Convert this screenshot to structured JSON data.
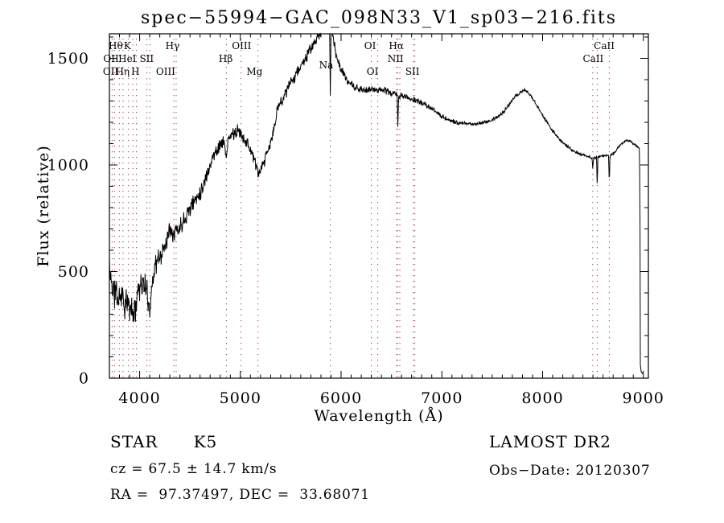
{
  "title": "spec−55994−GAC_098N33_V1_sp03−216.fits",
  "footer": {
    "class_label": "STAR      K5",
    "survey": "LAMOST DR2",
    "cz": "cz = 67.5 ± 14.7 km/s",
    "obs_date": "Obs−Date: 20120307",
    "coords": "RA =  97.37497, DEC =  33.68071"
  },
  "chart_data": {
    "type": "line",
    "title": "spec−55994−GAC_098N33_V1_sp03−216.fits",
    "xlabel": "Wavelength (Å)",
    "ylabel": "Flux (relative)",
    "xlim": [
      3700,
      9050
    ],
    "ylim": [
      0,
      1615
    ],
    "x_major_ticks": [
      4000,
      5000,
      6000,
      7000,
      8000,
      9000
    ],
    "x_minor_step": 100,
    "y_major_ticks": [
      0,
      500,
      1000,
      1500
    ],
    "y_minor_step": 100,
    "grid": false,
    "line_color": "#000000",
    "marker_line_color": "#9b3a35",
    "marker_lines": [
      3727,
      3750,
      3798,
      3835,
      3889,
      3933,
      3968,
      4072,
      4102,
      4340,
      4363,
      4861,
      5007,
      5175,
      5893,
      6300,
      6364,
      6548,
      6563,
      6583,
      6717,
      6731,
      8498,
      8542,
      8662
    ],
    "marker_labels": [
      {
        "label": "Hθ",
        "row": 1,
        "pos": 3763
      },
      {
        "label": "K",
        "row": 1,
        "pos": 3878
      },
      {
        "label": "Hγ",
        "row": 1,
        "pos": 4327
      },
      {
        "label": "OIII",
        "row": 1,
        "pos": 5012
      },
      {
        "label": "OI",
        "row": 1,
        "pos": 6288
      },
      {
        "label": "Hα",
        "row": 1,
        "pos": 6548
      },
      {
        "label": "CaII",
        "row": 1,
        "pos": 8612
      },
      {
        "label": "OII",
        "row": 2,
        "pos": 3717
      },
      {
        "label": "HeI",
        "row": 2,
        "pos": 3878
      },
      {
        "label": "SII",
        "row": 2,
        "pos": 4070
      },
      {
        "label": "Hβ",
        "row": 2,
        "pos": 4855
      },
      {
        "label": "NII",
        "row": 2,
        "pos": 6540
      },
      {
        "label": "CaII",
        "row": 2,
        "pos": 8502
      },
      {
        "label": "Na",
        "row": 2.5,
        "pos": 5852
      },
      {
        "label": "OII",
        "row": 3,
        "pos": 3713
      },
      {
        "label": "Hη",
        "row": 3,
        "pos": 3830
      },
      {
        "label": "H",
        "row": 3,
        "pos": 3958
      },
      {
        "label": "OIII",
        "row": 3,
        "pos": 4258
      },
      {
        "label": "Mg",
        "row": 3,
        "pos": 5140
      },
      {
        "label": "OI",
        "row": 3,
        "pos": 6312
      },
      {
        "label": "SII",
        "row": 3,
        "pos": 6708
      }
    ],
    "series": [
      {
        "name": "spectrum",
        "unit": "relative flux vs Å"
      }
    ],
    "spectrum_anchors": [
      [
        3700,
        560
      ],
      [
        3706,
        430
      ],
      [
        3712,
        520
      ],
      [
        3718,
        420
      ],
      [
        3724,
        470
      ],
      [
        3732,
        400
      ],
      [
        3740,
        430
      ],
      [
        3750,
        380
      ],
      [
        3762,
        430
      ],
      [
        3775,
        390
      ],
      [
        3790,
        360
      ],
      [
        3800,
        395
      ],
      [
        3812,
        370
      ],
      [
        3825,
        415
      ],
      [
        3838,
        360
      ],
      [
        3850,
        330
      ],
      [
        3862,
        365
      ],
      [
        3875,
        330
      ],
      [
        3888,
        360
      ],
      [
        3900,
        315
      ],
      [
        3912,
        345
      ],
      [
        3925,
        310
      ],
      [
        3933,
        285
      ],
      [
        3945,
        330
      ],
      [
        3955,
        300
      ],
      [
        3965,
        365
      ],
      [
        3975,
        400
      ],
      [
        3988,
        430
      ],
      [
        4000,
        425
      ],
      [
        4015,
        450
      ],
      [
        4030,
        435
      ],
      [
        4045,
        445
      ],
      [
        4060,
        420
      ],
      [
        4075,
        395
      ],
      [
        4090,
        345
      ],
      [
        4102,
        330
      ],
      [
        4115,
        390
      ],
      [
        4130,
        470
      ],
      [
        4145,
        515
      ],
      [
        4165,
        540
      ],
      [
        4185,
        555
      ],
      [
        4210,
        575
      ],
      [
        4235,
        600
      ],
      [
        4260,
        640
      ],
      [
        4285,
        680
      ],
      [
        4310,
        715
      ],
      [
        4335,
        680
      ],
      [
        4360,
        700
      ],
      [
        4385,
        690
      ],
      [
        4410,
        720
      ],
      [
        4440,
        745
      ],
      [
        4470,
        775
      ],
      [
        4500,
        800
      ],
      [
        4530,
        820
      ],
      [
        4560,
        845
      ],
      [
        4590,
        865
      ],
      [
        4620,
        890
      ],
      [
        4650,
        930
      ],
      [
        4680,
        975
      ],
      [
        4710,
        1015
      ],
      [
        4740,
        1050
      ],
      [
        4770,
        1075
      ],
      [
        4800,
        1095
      ],
      [
        4830,
        1105
      ],
      [
        4852,
        1080
      ],
      [
        4861,
        1020
      ],
      [
        4872,
        1090
      ],
      [
        4890,
        1125
      ],
      [
        4910,
        1140
      ],
      [
        4930,
        1150
      ],
      [
        4950,
        1145
      ],
      [
        4970,
        1155
      ],
      [
        4990,
        1160
      ],
      [
        5007,
        1140
      ],
      [
        5025,
        1135
      ],
      [
        5045,
        1120
      ],
      [
        5065,
        1105
      ],
      [
        5085,
        1085
      ],
      [
        5105,
        1070
      ],
      [
        5125,
        1045
      ],
      [
        5145,
        1010
      ],
      [
        5165,
        980
      ],
      [
        5185,
        960
      ],
      [
        5205,
        970
      ],
      [
        5225,
        1000
      ],
      [
        5245,
        1025
      ],
      [
        5265,
        1055
      ],
      [
        5285,
        1080
      ],
      [
        5305,
        1110
      ],
      [
        5325,
        1150
      ],
      [
        5345,
        1200
      ],
      [
        5365,
        1250
      ],
      [
        5385,
        1285
      ],
      [
        5405,
        1300
      ],
      [
        5425,
        1315
      ],
      [
        5445,
        1335
      ],
      [
        5465,
        1355
      ],
      [
        5485,
        1370
      ],
      [
        5505,
        1390
      ],
      [
        5530,
        1410
      ],
      [
        5555,
        1430
      ],
      [
        5580,
        1450
      ],
      [
        5610,
        1470
      ],
      [
        5640,
        1495
      ],
      [
        5670,
        1520
      ],
      [
        5700,
        1545
      ],
      [
        5730,
        1570
      ],
      [
        5760,
        1590
      ],
      [
        5790,
        1615
      ],
      [
        5820,
        1640
      ],
      [
        5850,
        1655
      ],
      [
        5875,
        1660
      ],
      [
        5886,
        1650
      ],
      [
        5893,
        1330
      ],
      [
        5900,
        1645
      ],
      [
        5912,
        1630
      ],
      [
        5925,
        1590
      ],
      [
        5940,
        1545
      ],
      [
        5955,
        1510
      ],
      [
        5970,
        1480
      ],
      [
        5990,
        1460
      ],
      [
        6010,
        1440
      ],
      [
        6030,
        1420
      ],
      [
        6055,
        1400
      ],
      [
        6080,
        1385
      ],
      [
        6110,
        1372
      ],
      [
        6140,
        1362
      ],
      [
        6170,
        1355
      ],
      [
        6200,
        1352
      ],
      [
        6240,
        1350
      ],
      [
        6280,
        1352
      ],
      [
        6320,
        1355
      ],
      [
        6360,
        1352
      ],
      [
        6400,
        1355
      ],
      [
        6440,
        1348
      ],
      [
        6480,
        1340
      ],
      [
        6520,
        1335
      ],
      [
        6556,
        1330
      ],
      [
        6563,
        1165
      ],
      [
        6571,
        1325
      ],
      [
        6600,
        1325
      ],
      [
        6640,
        1318
      ],
      [
        6680,
        1312
      ],
      [
        6720,
        1305
      ],
      [
        6760,
        1300
      ],
      [
        6800,
        1292
      ],
      [
        6840,
        1280
      ],
      [
        6880,
        1268
      ],
      [
        6920,
        1255
      ],
      [
        6960,
        1242
      ],
      [
        7000,
        1230
      ],
      [
        7050,
        1215
      ],
      [
        7100,
        1205
      ],
      [
        7150,
        1198
      ],
      [
        7200,
        1195
      ],
      [
        7260,
        1192
      ],
      [
        7320,
        1192
      ],
      [
        7380,
        1196
      ],
      [
        7440,
        1202
      ],
      [
        7500,
        1212
      ],
      [
        7560,
        1228
      ],
      [
        7620,
        1252
      ],
      [
        7680,
        1290
      ],
      [
        7740,
        1325
      ],
      [
        7790,
        1345
      ],
      [
        7830,
        1350
      ],
      [
        7870,
        1332
      ],
      [
        7910,
        1305
      ],
      [
        7950,
        1272
      ],
      [
        8000,
        1232
      ],
      [
        8050,
        1195
      ],
      [
        8100,
        1160
      ],
      [
        8150,
        1130
      ],
      [
        8200,
        1105
      ],
      [
        8250,
        1085
      ],
      [
        8300,
        1068
      ],
      [
        8350,
        1055
      ],
      [
        8400,
        1048
      ],
      [
        8450,
        1042
      ],
      [
        8490,
        1032
      ],
      [
        8498,
        985
      ],
      [
        8506,
        1030
      ],
      [
        8535,
        1038
      ],
      [
        8542,
        905
      ],
      [
        8549,
        1038
      ],
      [
        8580,
        1042
      ],
      [
        8620,
        1045
      ],
      [
        8655,
        1045
      ],
      [
        8662,
        910
      ],
      [
        8669,
        1045
      ],
      [
        8700,
        1052
      ],
      [
        8740,
        1075
      ],
      [
        8780,
        1098
      ],
      [
        8820,
        1110
      ],
      [
        8855,
        1115
      ],
      [
        8890,
        1105
      ],
      [
        8920,
        1092
      ],
      [
        8945,
        1082
      ],
      [
        8962,
        1078
      ],
      [
        8967,
        700
      ],
      [
        8970,
        60
      ],
      [
        8980,
        30
      ],
      [
        8995,
        20
      ]
    ],
    "noise_anchors": [
      [
        3700,
        85
      ],
      [
        3900,
        75
      ],
      [
        4100,
        70
      ],
      [
        4300,
        55
      ],
      [
        4600,
        45
      ],
      [
        4900,
        38
      ],
      [
        5200,
        35
      ],
      [
        5500,
        32
      ],
      [
        5800,
        30
      ],
      [
        5900,
        28
      ],
      [
        6100,
        22
      ],
      [
        6400,
        20
      ],
      [
        6700,
        16
      ],
      [
        7000,
        13
      ],
      [
        7300,
        11
      ],
      [
        7600,
        11
      ],
      [
        7900,
        11
      ],
      [
        8200,
        10
      ],
      [
        8500,
        8
      ],
      [
        8800,
        7
      ],
      [
        8950,
        6
      ],
      [
        8995,
        5
      ]
    ],
    "noise_seed": 11
  }
}
